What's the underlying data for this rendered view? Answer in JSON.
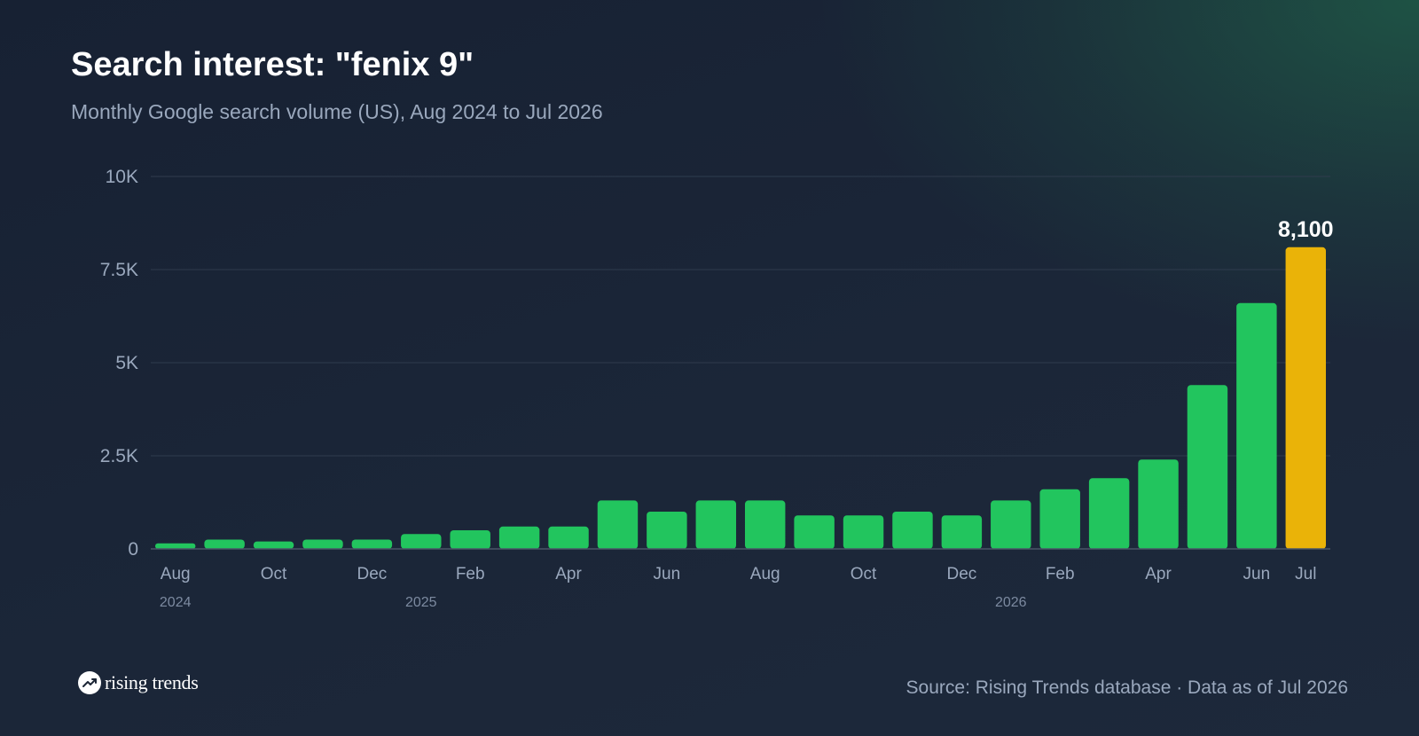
{
  "chart_data": {
    "type": "bar",
    "title": "Search interest: \"fenix 9\"",
    "subtitle": "Monthly Google search volume (US), Aug 2024 to Jul 2026",
    "categories": [
      "Aug 2024",
      "Sep 2024",
      "Oct 2024",
      "Nov 2024",
      "Dec 2024",
      "Jan 2025",
      "Feb 2025",
      "Mar 2025",
      "Apr 2025",
      "May 2025",
      "Jun 2025",
      "Jul 2025",
      "Aug 2025",
      "Sep 2025",
      "Oct 2025",
      "Nov 2025",
      "Dec 2025",
      "Jan 2026",
      "Feb 2026",
      "Mar 2026",
      "Apr 2026",
      "May 2026",
      "Jun 2026",
      "Jul 2026"
    ],
    "values": [
      150,
      250,
      200,
      250,
      250,
      400,
      500,
      600,
      600,
      1300,
      1000,
      1300,
      1300,
      900,
      900,
      1000,
      900,
      1300,
      1600,
      1900,
      2400,
      4400,
      6600,
      8100
    ],
    "highlight_index": 23,
    "highlight_label": "8,100",
    "bar_color": "#22c55e",
    "highlight_color": "#eab308",
    "ylim": [
      0,
      10000
    ],
    "y_ticks": [
      {
        "value": 0,
        "label": "0"
      },
      {
        "value": 2500,
        "label": "2.5K"
      },
      {
        "value": 5000,
        "label": "5K"
      },
      {
        "value": 7500,
        "label": "7.5K"
      },
      {
        "value": 10000,
        "label": "10K"
      }
    ],
    "x_ticks": [
      {
        "index": 0,
        "label": "Aug"
      },
      {
        "index": 2,
        "label": "Oct"
      },
      {
        "index": 4,
        "label": "Dec"
      },
      {
        "index": 6,
        "label": "Feb"
      },
      {
        "index": 8,
        "label": "Apr"
      },
      {
        "index": 10,
        "label": "Jun"
      },
      {
        "index": 12,
        "label": "Aug"
      },
      {
        "index": 14,
        "label": "Oct"
      },
      {
        "index": 16,
        "label": "Dec"
      },
      {
        "index": 18,
        "label": "Feb"
      },
      {
        "index": 20,
        "label": "Apr"
      },
      {
        "index": 22,
        "label": "Jun"
      },
      {
        "index": 23,
        "label": "Jul"
      }
    ],
    "x_years": [
      {
        "index": 0,
        "label": "2024"
      },
      {
        "index": 5,
        "label": "2025"
      },
      {
        "index": 17,
        "label": "2026"
      }
    ],
    "grid": true,
    "legend": "none"
  },
  "footer": {
    "brand": "rising trends",
    "source": "Source: Rising Trends database · Data as of Jul 2026"
  },
  "icons": {
    "logo": "trending-up-icon"
  }
}
